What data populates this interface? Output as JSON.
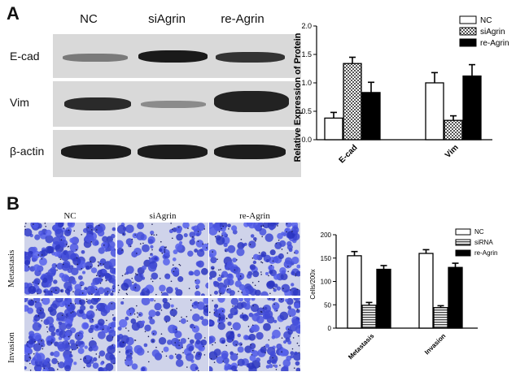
{
  "panelA": {
    "letter": "A",
    "lanes": [
      "NC",
      "siAgrin",
      "re-Agrin"
    ],
    "rows": [
      "E-cad",
      "Vim",
      "β-actin"
    ]
  },
  "panelB": {
    "letter": "B",
    "columns": [
      "NC",
      "siAgrin",
      "re-Agrin"
    ],
    "rows": [
      "Metastasis",
      "Invasion"
    ]
  },
  "chart_data": [
    {
      "type": "bar",
      "categories": [
        "E-cad",
        "Vim"
      ],
      "series": [
        {
          "name": "NC",
          "values": [
            0.38,
            1.0
          ],
          "errors": [
            0.1,
            0.18
          ],
          "pattern": "white"
        },
        {
          "name": "siAgrin",
          "values": [
            1.34,
            0.34
          ],
          "errors": [
            0.11,
            0.08
          ],
          "pattern": "checker"
        },
        {
          "name": "re-Agrin",
          "values": [
            0.83,
            1.12
          ],
          "errors": [
            0.18,
            0.2
          ],
          "pattern": "black"
        }
      ],
      "title": "",
      "xlabel": "",
      "ylabel": "Relative Expression of Protein",
      "ylim": [
        0,
        2.0
      ],
      "yticks": [
        "0.0",
        "0.5",
        "1.0",
        "1.5",
        "2.0"
      ],
      "legend": "top-right"
    },
    {
      "type": "bar",
      "categories": [
        "Metastasis",
        "Invasion"
      ],
      "series": [
        {
          "name": "NC",
          "values": [
            155,
            160
          ],
          "errors": [
            9,
            8
          ],
          "pattern": "white"
        },
        {
          "name": "siRNA",
          "values": [
            49,
            44
          ],
          "errors": [
            6,
            4
          ],
          "pattern": "stripes"
        },
        {
          "name": "re-Agrin",
          "values": [
            126,
            130
          ],
          "errors": [
            8,
            9
          ],
          "pattern": "black"
        }
      ],
      "title": "",
      "xlabel": "",
      "ylabel": "Cells/200x",
      "ylim": [
        0,
        200
      ],
      "yticks": [
        "0",
        "50",
        "100",
        "150",
        "200"
      ],
      "legend": "top-right"
    }
  ],
  "colors": {
    "stain": "#3a3fb0",
    "background_stain": "#cdd1ea"
  }
}
